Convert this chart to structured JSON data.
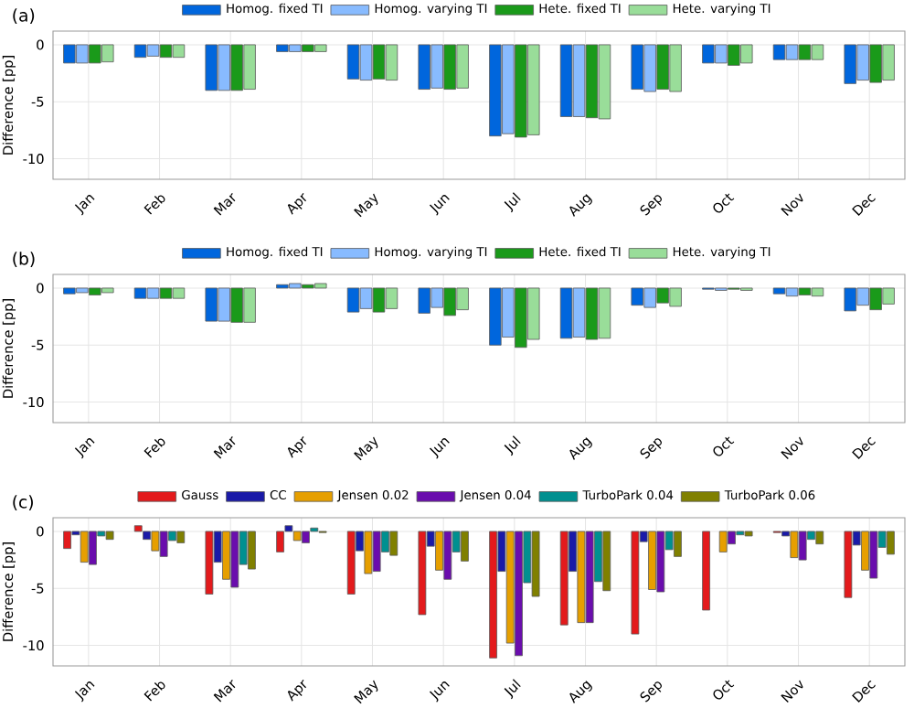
{
  "chart_data": [
    {
      "type": "bar",
      "title": "(a)",
      "ylabel": "Difference [pp]",
      "categories": [
        "Jan",
        "Feb",
        "Mar",
        "Apr",
        "May",
        "Jun",
        "Jul",
        "Aug",
        "Sep",
        "Oct",
        "Nov",
        "Dec"
      ],
      "ylim": [
        -11.8,
        1.2
      ],
      "yticks": [
        -10,
        -5,
        0
      ],
      "grid": true,
      "legend": "top",
      "series": [
        {
          "name": "Homog. fixed TI",
          "color": "#0066dd",
          "values": [
            -1.6,
            -1.1,
            -4.0,
            -0.6,
            -3.0,
            -3.9,
            -8.0,
            -6.3,
            -3.9,
            -1.6,
            -1.3,
            -3.4
          ]
        },
        {
          "name": "Homog. varying TI",
          "color": "#88bbff",
          "values": [
            -1.6,
            -1.0,
            -4.0,
            -0.6,
            -3.1,
            -3.8,
            -7.8,
            -6.3,
            -4.1,
            -1.6,
            -1.3,
            -3.1
          ]
        },
        {
          "name": "Hete. fixed TI",
          "color": "#1a9a1a",
          "values": [
            -1.6,
            -1.1,
            -4.0,
            -0.6,
            -3.0,
            -3.9,
            -8.1,
            -6.4,
            -3.9,
            -1.8,
            -1.3,
            -3.3
          ]
        },
        {
          "name": "Hete. varying TI",
          "color": "#99dd99",
          "values": [
            -1.5,
            -1.1,
            -3.9,
            -0.6,
            -3.1,
            -3.8,
            -7.9,
            -6.5,
            -4.1,
            -1.6,
            -1.3,
            -3.1
          ]
        }
      ]
    },
    {
      "type": "bar",
      "title": "(b)",
      "ylabel": "Difference [pp]",
      "categories": [
        "Jan",
        "Feb",
        "Mar",
        "Apr",
        "May",
        "Jun",
        "Jul",
        "Aug",
        "Sep",
        "Oct",
        "Nov",
        "Dec"
      ],
      "ylim": [
        -11.8,
        1.2
      ],
      "yticks": [
        -10,
        -5,
        0
      ],
      "grid": true,
      "legend": "top",
      "series": [
        {
          "name": "Homog. fixed TI",
          "color": "#0066dd",
          "values": [
            -0.5,
            -0.9,
            -2.9,
            0.3,
            -2.1,
            -2.2,
            -5.0,
            -4.4,
            -1.5,
            -0.1,
            -0.5,
            -2.0
          ]
        },
        {
          "name": "Homog. varying TI",
          "color": "#88bbff",
          "values": [
            -0.4,
            -0.9,
            -2.9,
            0.4,
            -1.8,
            -1.7,
            -4.3,
            -4.3,
            -1.7,
            -0.2,
            -0.7,
            -1.5
          ]
        },
        {
          "name": "Hete. fixed TI",
          "color": "#1a9a1a",
          "values": [
            -0.6,
            -0.9,
            -3.0,
            0.3,
            -2.1,
            -2.4,
            -5.2,
            -4.5,
            -1.3,
            -0.1,
            -0.6,
            -1.9
          ]
        },
        {
          "name": "Hete. varying TI",
          "color": "#99dd99",
          "values": [
            -0.4,
            -0.9,
            -3.0,
            0.4,
            -1.8,
            -1.9,
            -4.5,
            -4.4,
            -1.6,
            -0.2,
            -0.7,
            -1.4
          ]
        }
      ]
    },
    {
      "type": "bar",
      "title": "(c)",
      "ylabel": "Difference [pp]",
      "categories": [
        "Jan",
        "Feb",
        "Mar",
        "Apr",
        "May",
        "Jun",
        "Jul",
        "Aug",
        "Sep",
        "Oct",
        "Nov",
        "Dec"
      ],
      "ylim": [
        -11.8,
        1.2
      ],
      "yticks": [
        -10,
        -5,
        0
      ],
      "grid": true,
      "legend": "top",
      "series": [
        {
          "name": "Gauss",
          "color": "#e31a1c",
          "values": [
            -1.5,
            0.5,
            -5.5,
            -1.8,
            -5.5,
            -7.3,
            -11.1,
            -8.2,
            -9.0,
            -6.9,
            -0.1,
            -5.8
          ]
        },
        {
          "name": "CC",
          "color": "#1a1aa8",
          "values": [
            -0.3,
            -0.7,
            -2.7,
            0.5,
            -1.7,
            -1.3,
            -3.5,
            -3.5,
            -0.9,
            null,
            -0.4,
            -1.2
          ]
        },
        {
          "name": "Jensen 0.02",
          "color": "#e69f00",
          "values": [
            -2.7,
            -1.7,
            -4.2,
            -0.8,
            -3.7,
            -3.4,
            -9.8,
            -8.0,
            -5.1,
            -1.8,
            -2.3,
            -3.4
          ]
        },
        {
          "name": "Jensen 0.04",
          "color": "#6a0dad",
          "values": [
            -2.9,
            -2.2,
            -4.9,
            -1.0,
            -3.5,
            -4.2,
            -10.9,
            -8.0,
            -5.3,
            -1.1,
            -2.5,
            -4.1
          ]
        },
        {
          "name": "TurboPark 0.04",
          "color": "#009090",
          "values": [
            -0.4,
            -0.8,
            -2.9,
            0.3,
            -1.8,
            -1.8,
            -4.5,
            -4.4,
            -1.6,
            -0.3,
            -0.7,
            -1.4
          ]
        },
        {
          "name": "TurboPark 0.06",
          "color": "#808000",
          "values": [
            -0.7,
            -1.0,
            -3.3,
            -0.1,
            -2.1,
            -2.6,
            -5.7,
            -5.2,
            -2.2,
            -0.4,
            -1.1,
            -2.0
          ]
        }
      ]
    }
  ]
}
